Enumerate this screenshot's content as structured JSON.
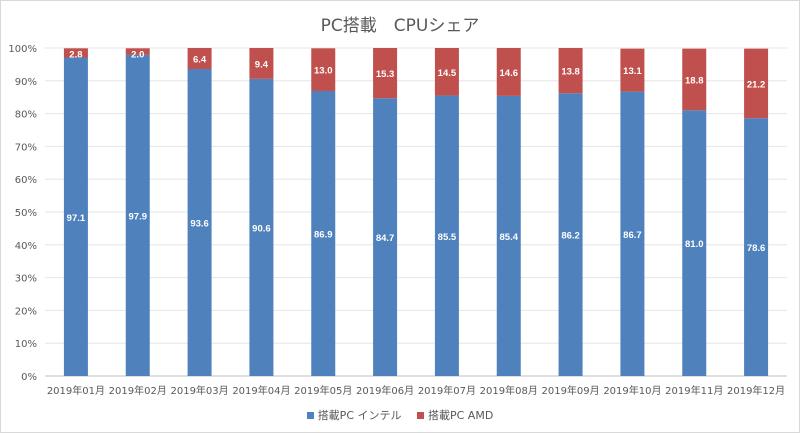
{
  "chart_data": {
    "type": "bar",
    "stacked": true,
    "title": "PC搭載　CPUシェア",
    "categories": [
      "2019年01月",
      "2019年02月",
      "2019年03月",
      "2019年04月",
      "2019年05月",
      "2019年06月",
      "2019年07月",
      "2019年08月",
      "2019年09月",
      "2019年10月",
      "2019年11月",
      "2019年12月"
    ],
    "series": [
      {
        "name": "搭載PC インテル",
        "color": "#4f81bd",
        "values": [
          97.1,
          97.9,
          93.6,
          90.6,
          86.9,
          84.7,
          85.5,
          85.4,
          86.2,
          86.7,
          81.0,
          78.6
        ]
      },
      {
        "name": "搭載PC AMD",
        "color": "#c0504d",
        "values": [
          2.8,
          2.0,
          6.4,
          9.4,
          13.0,
          15.3,
          14.5,
          14.6,
          13.8,
          13.1,
          18.8,
          21.2
        ]
      }
    ],
    "yticks": [
      "0%",
      "10%",
      "20%",
      "30%",
      "40%",
      "50%",
      "60%",
      "70%",
      "80%",
      "90%",
      "100%"
    ],
    "ylim": [
      0,
      100
    ],
    "grid": true,
    "legend": "bottom"
  }
}
